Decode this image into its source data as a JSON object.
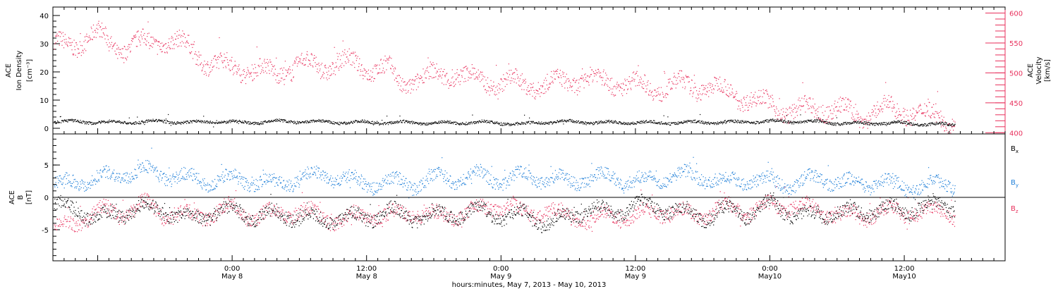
{
  "colors": {
    "black": "#000000",
    "pink": "#e8305c",
    "blue": "#1f7fd8"
  },
  "chart_data": [
    {
      "type": "scatter",
      "panel": "top",
      "ylabel_left": [
        "ACE",
        "Ion Density",
        "[cm⁻³]"
      ],
      "ylabel_right": [
        "ACE",
        "Velocity",
        "[km/s]"
      ],
      "ylim_left": [
        -2,
        43
      ],
      "ylim_right": [
        398,
        610
      ],
      "yticks_left": [
        "0",
        "10",
        "20",
        "30",
        "40"
      ],
      "yticks_right": [
        "400",
        "450",
        "500",
        "550",
        "600"
      ],
      "x_range_hours": [
        -16,
        69
      ],
      "series": [
        {
          "name_hidden": "density",
          "axis": "left",
          "color": "black",
          "x": [
            -14,
            -12,
            -10,
            -8,
            -6,
            -4,
            -2,
            0,
            2,
            4,
            6,
            8,
            10,
            12,
            14,
            16,
            18,
            20,
            22,
            24,
            26,
            28,
            30,
            32,
            34,
            36,
            38,
            40,
            42,
            44,
            46,
            48,
            50,
            52,
            54,
            56,
            58,
            60,
            62,
            64
          ],
          "y": [
            2.5,
            2.3,
            2.2,
            2.4,
            2.6,
            2.1,
            2.5,
            2.3,
            2.2,
            2.6,
            2.5,
            2.4,
            2.2,
            2.3,
            2.1,
            2.2,
            2.0,
            2.1,
            2.3,
            2.0,
            1.6,
            2.4,
            2.5,
            2.2,
            2.1,
            2.3,
            2.0,
            2.2,
            2.3,
            2.2,
            2.4,
            2.6,
            2.5,
            2.4,
            2.0,
            1.8,
            2.0,
            2.0,
            1.6,
            1.4
          ]
        },
        {
          "name_hidden": "velocity",
          "axis": "right",
          "color": "pink",
          "x": [
            -16,
            -14,
            -12,
            -10,
            -8,
            -6,
            -4,
            -2,
            0,
            2,
            4,
            6,
            8,
            10,
            12,
            14,
            15,
            16,
            18,
            20,
            22,
            24,
            26,
            28,
            30,
            32,
            34,
            36,
            38,
            40,
            42,
            44,
            46,
            48,
            50,
            52,
            54,
            56,
            58,
            60,
            62,
            64
          ],
          "y": [
            545,
            550,
            565,
            540,
            550,
            555,
            545,
            515,
            510,
            505,
            500,
            515,
            510,
            518,
            510,
            505,
            480,
            490,
            495,
            498,
            488,
            485,
            482,
            480,
            488,
            490,
            485,
            480,
            475,
            480,
            478,
            470,
            458,
            448,
            435,
            440,
            440,
            428,
            440,
            438,
            430,
            425
          ]
        }
      ]
    },
    {
      "type": "scatter",
      "panel": "bottom",
      "ylabel": [
        "ACE",
        "B",
        "[nT]"
      ],
      "ylim": [
        -9.8,
        9.8
      ],
      "yticks": [
        "-5",
        "0",
        "5"
      ],
      "x_range_hours": [
        -16,
        69
      ],
      "legend_position": "right",
      "legend": [
        {
          "label": "B",
          "sub": "x",
          "color": "black"
        },
        {
          "label": "B",
          "sub": "y",
          "color": "blue"
        },
        {
          "label": "B",
          "sub": "z",
          "color": "pink"
        }
      ],
      "series": [
        {
          "name": "Bx",
          "color": "black",
          "x": [
            -16,
            -14,
            -12,
            -10,
            -8,
            -6,
            -4,
            -2,
            0,
            2,
            4,
            6,
            8,
            10,
            12,
            14,
            16,
            18,
            20,
            22,
            24,
            26,
            28,
            30,
            32,
            34,
            36,
            38,
            40,
            42,
            44,
            46,
            48,
            50,
            52,
            54,
            56,
            58,
            60,
            62,
            64
          ],
          "y": [
            -1.0,
            -2.0,
            -3.0,
            -2.5,
            -1.5,
            -2.0,
            -3.5,
            -2.5,
            -2.0,
            -3.0,
            -2.5,
            -3.0,
            -3.5,
            -3.0,
            -3.2,
            -2.0,
            -3.0,
            -2.8,
            -2.5,
            -2.0,
            -3.0,
            -2.5,
            -4.0,
            -3.0,
            -1.5,
            -2.5,
            -1.0,
            -1.5,
            -2.0,
            -3.0,
            -2.0,
            -2.5,
            -1.0,
            -2.5,
            -3.0,
            -2.0,
            -2.5,
            -1.5,
            -2.0,
            -1.0,
            -1.5
          ]
        },
        {
          "name": "By",
          "color": "blue",
          "x": [
            -16,
            -14,
            -12,
            -10,
            -8,
            -6,
            -4,
            -2,
            0,
            2,
            4,
            6,
            8,
            10,
            12,
            14,
            16,
            18,
            20,
            22,
            24,
            26,
            28,
            30,
            32,
            34,
            36,
            38,
            40,
            42,
            44,
            46,
            48,
            50,
            52,
            54,
            56,
            58,
            60,
            62,
            64
          ],
          "y": [
            2.0,
            2.5,
            3.0,
            3.5,
            4.2,
            3.5,
            3.0,
            2.5,
            3.0,
            2.5,
            2.0,
            3.0,
            3.5,
            3.0,
            2.0,
            2.5,
            2.0,
            3.0,
            3.0,
            3.5,
            2.5,
            3.5,
            3.0,
            2.5,
            3.0,
            3.2,
            2.5,
            3.0,
            3.5,
            3.2,
            2.5,
            3.0,
            2.5,
            2.0,
            3.0,
            2.5,
            2.0,
            2.5,
            1.5,
            2.0,
            2.2
          ]
        },
        {
          "name": "Bz",
          "color": "pink",
          "x": [
            -16,
            -14,
            -12,
            -10,
            -8,
            -6,
            -4,
            -2,
            0,
            2,
            4,
            6,
            8,
            10,
            12,
            14,
            16,
            18,
            20,
            22,
            24,
            26,
            28,
            30,
            32,
            34,
            36,
            38,
            40,
            42,
            44,
            46,
            48,
            50,
            52,
            54,
            56,
            58,
            60,
            62,
            64
          ],
          "y": [
            -4.5,
            -4.0,
            -2.0,
            -2.5,
            -1.0,
            -2.5,
            -3.0,
            -2.5,
            -1.5,
            -3.0,
            -2.5,
            -2.0,
            -3.0,
            -3.5,
            -2.5,
            -3.0,
            -2.0,
            -3.0,
            -2.5,
            -2.0,
            -1.0,
            -2.5,
            -2.0,
            -3.0,
            -3.5,
            -2.5,
            -3.0,
            -2.0,
            -2.5,
            -2.5,
            -1.5,
            -2.0,
            -1.5,
            -1.0,
            -2.0,
            -2.5,
            -3.0,
            -2.0,
            -2.5,
            -2.0,
            -2.5
          ]
        }
      ]
    }
  ],
  "x_axis": {
    "ticks": [
      {
        "hour": 0,
        "time": "0:00",
        "date": "May 8"
      },
      {
        "hour": 12,
        "time": "12:00",
        "date": "May 8"
      },
      {
        "hour": 24,
        "time": "0:00",
        "date": "May 9"
      },
      {
        "hour": 36,
        "time": "12:00",
        "date": "May 9"
      },
      {
        "hour": 48,
        "time": "0:00",
        "date": "May10"
      },
      {
        "hour": 60,
        "time": "12:00",
        "date": "May10"
      }
    ],
    "label": "hours:minutes,  May  7, 2013 - May 10, 2013"
  }
}
